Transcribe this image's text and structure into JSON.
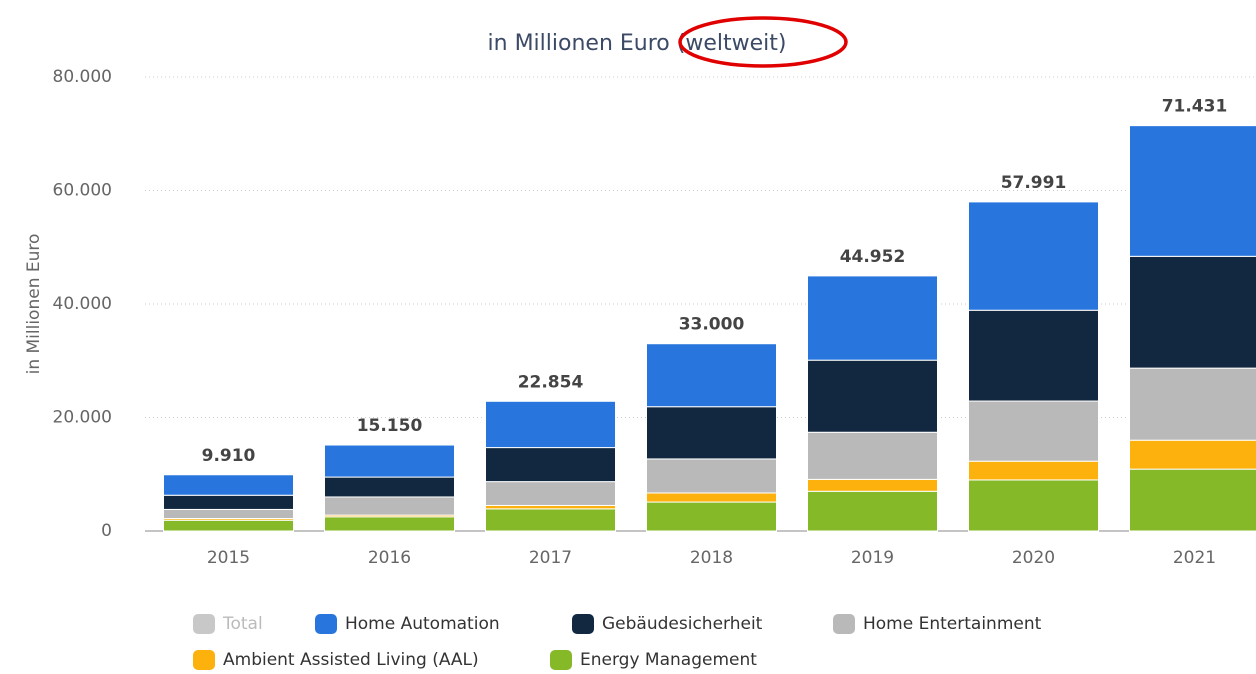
{
  "chart_data": {
    "type": "stacked_bar",
    "title": "in Millionen Euro (weltweit)",
    "y_label": "in Millionen Euro",
    "categories": [
      "2015",
      "2016",
      "2017",
      "2018",
      "2019",
      "2020",
      "2021"
    ],
    "ylim": [
      0,
      80000
    ],
    "yticks": [
      0,
      {
        "value": 20000,
        "label": "20.000"
      },
      {
        "value": 40000,
        "label": "40.000"
      },
      {
        "value": 60000,
        "label": "60.000"
      },
      {
        "value": 80000,
        "label": "80.000"
      }
    ],
    "grid": true,
    "series": [
      {
        "name": "Total",
        "color": "#c8c8c8",
        "visible": false,
        "values": [
          9910,
          15150,
          22854,
          33000,
          44952,
          57991,
          71431
        ],
        "value_labels": [
          "9.910",
          "15.150",
          "22.854",
          "33.000",
          "44.952",
          "57.991",
          "71.431"
        ]
      },
      {
        "name": "Home Automation",
        "color": "#2876dd",
        "values": [
          3610,
          5650,
          8154,
          11100,
          14852,
          19091,
          23031
        ]
      },
      {
        "name": "Gebäudesicherheit",
        "color": "#112840",
        "values": [
          2500,
          3500,
          6000,
          9200,
          12700,
          16000,
          19700
        ]
      },
      {
        "name": "Home Entertainment",
        "color": "#b9b9b9",
        "values": [
          1600,
          3200,
          4200,
          6000,
          8300,
          10600,
          12700
        ]
      },
      {
        "name": "Ambient Assisted Living (AAL)",
        "color": "#fcb10d",
        "values": [
          300,
          300,
          600,
          1600,
          2100,
          3300,
          5100
        ]
      },
      {
        "name": "Energy Management",
        "color": "#86b928",
        "values": [
          1900,
          2500,
          3900,
          5100,
          7000,
          9000,
          10900
        ]
      }
    ]
  }
}
